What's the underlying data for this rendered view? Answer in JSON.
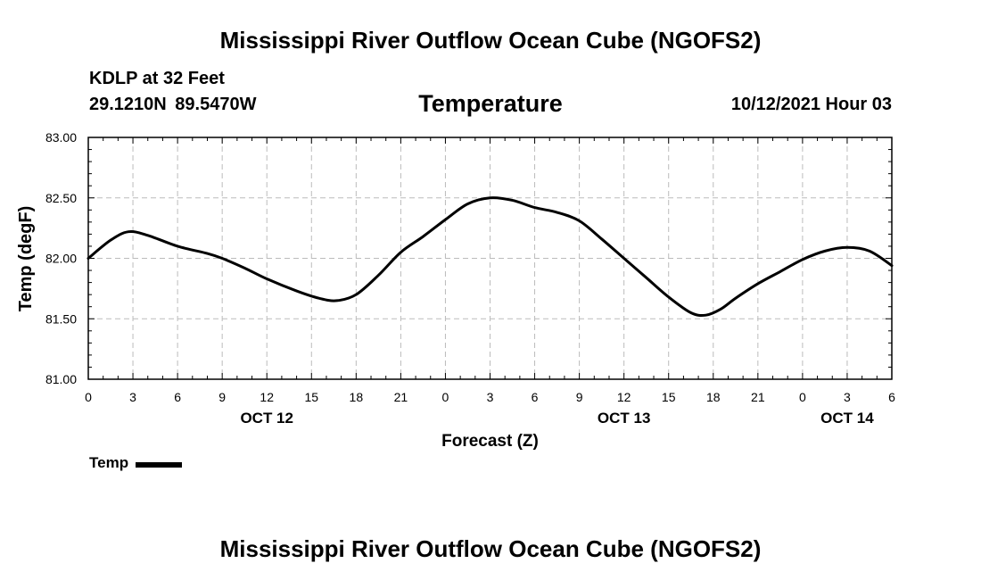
{
  "header": {
    "main_title": "Mississippi River Outflow Ocean Cube (NGOFS2)",
    "station": "KDLP at 32 Feet",
    "coords": "29.1210N  89.5470W",
    "chart_title": "Temperature",
    "datetime": "10/12/2021 Hour 03"
  },
  "footer": {
    "title": "Mississippi River Outflow Ocean Cube (NGOFS2)"
  },
  "legend": {
    "label": "Temp",
    "color": "#000000"
  },
  "chart_data": {
    "type": "line",
    "title": "Temperature",
    "xlabel": "Forecast (Z)",
    "ylabel": "Temp (degF)",
    "xlim": [
      0,
      54
    ],
    "ylim": [
      81.0,
      83.0
    ],
    "grid": true,
    "yticks": [
      81.0,
      81.5,
      82.0,
      82.5,
      83.0
    ],
    "ytick_labels": [
      "81.00",
      "81.50",
      "82.00",
      "82.50",
      "83.00"
    ],
    "xticks": [
      0,
      3,
      6,
      9,
      12,
      15,
      18,
      21,
      24,
      27,
      30,
      33,
      36,
      39,
      42,
      45,
      48,
      51,
      54
    ],
    "xtick_labels": [
      "0",
      "3",
      "6",
      "9",
      "12",
      "15",
      "18",
      "21",
      "0",
      "3",
      "6",
      "9",
      "12",
      "15",
      "18",
      "21",
      "0",
      "3",
      "6"
    ],
    "date_labels": [
      {
        "x": 12,
        "label": "OCT 12"
      },
      {
        "x": 36,
        "label": "OCT 13"
      },
      {
        "x": 51,
        "label": "OCT 14"
      }
    ],
    "series": [
      {
        "name": "Temp",
        "x": [
          0,
          1.5,
          2.7,
          4,
          6,
          8,
          9,
          10.5,
          12,
          14,
          15.5,
          16.7,
          18,
          19.5,
          21,
          22.5,
          24,
          25.5,
          27,
          28.5,
          30,
          31.5,
          33,
          34.5,
          36,
          37.5,
          39,
          40.5,
          41.5,
          42.5,
          43.5,
          45,
          46.5,
          48,
          49.5,
          51,
          52.5,
          54
        ],
        "values": [
          82.0,
          82.15,
          82.22,
          82.19,
          82.1,
          82.04,
          82.0,
          81.92,
          81.83,
          81.73,
          81.67,
          81.65,
          81.7,
          81.86,
          82.05,
          82.18,
          82.32,
          82.45,
          82.5,
          82.48,
          82.42,
          82.38,
          82.31,
          82.16,
          82.0,
          81.84,
          81.68,
          81.55,
          81.53,
          81.58,
          81.67,
          81.79,
          81.89,
          81.99,
          82.06,
          82.09,
          82.06,
          81.94
        ]
      }
    ]
  }
}
